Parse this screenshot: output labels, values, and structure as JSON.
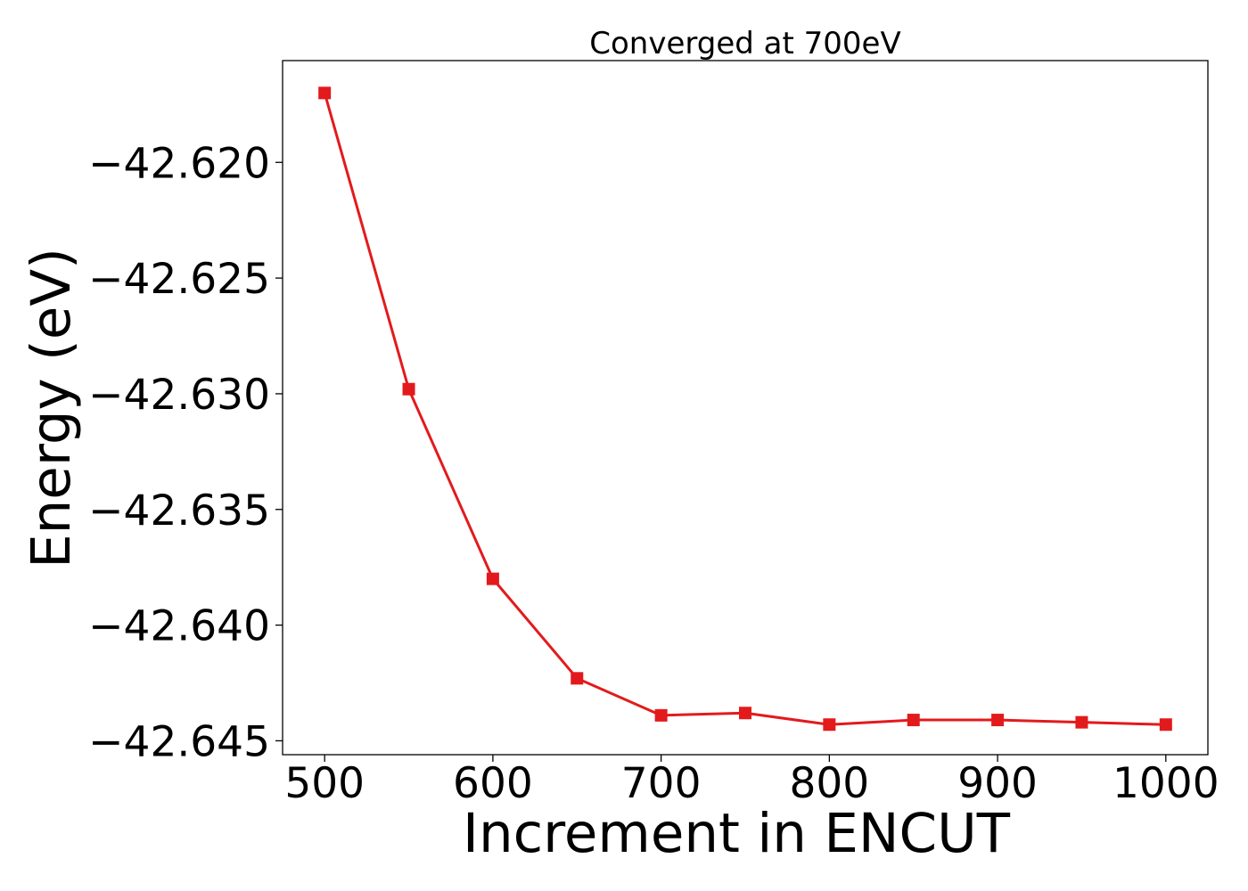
{
  "chart_data": {
    "type": "line",
    "title": "Converged at 700eV",
    "xlabel": "Increment in ENCUT",
    "ylabel": "Energy (eV)",
    "x": [
      500,
      550,
      600,
      650,
      700,
      750,
      800,
      850,
      900,
      950,
      1000
    ],
    "series": [
      {
        "values": [
          -42.617,
          -42.6298,
          -42.638,
          -42.6423,
          -42.6439,
          -42.6438,
          -42.6443,
          -42.6441,
          -42.6441,
          -42.6442,
          -42.6443
        ],
        "color": "#e31a1c",
        "marker": "square"
      }
    ],
    "xlim": [
      475,
      1025
    ],
    "ylim": [
      -42.6456,
      -42.6156
    ],
    "x_ticks": [
      500,
      600,
      700,
      800,
      900,
      1000
    ],
    "x_tick_labels": [
      "500",
      "600",
      "700",
      "800",
      "900",
      "1000"
    ],
    "y_ticks": [
      -42.62,
      -42.625,
      -42.63,
      -42.635,
      -42.64,
      -42.645
    ],
    "y_tick_labels": [
      "−42.620",
      "−42.625",
      "−42.630",
      "−42.635",
      "−42.640",
      "−42.645"
    ],
    "grid": false,
    "legend": "none"
  }
}
